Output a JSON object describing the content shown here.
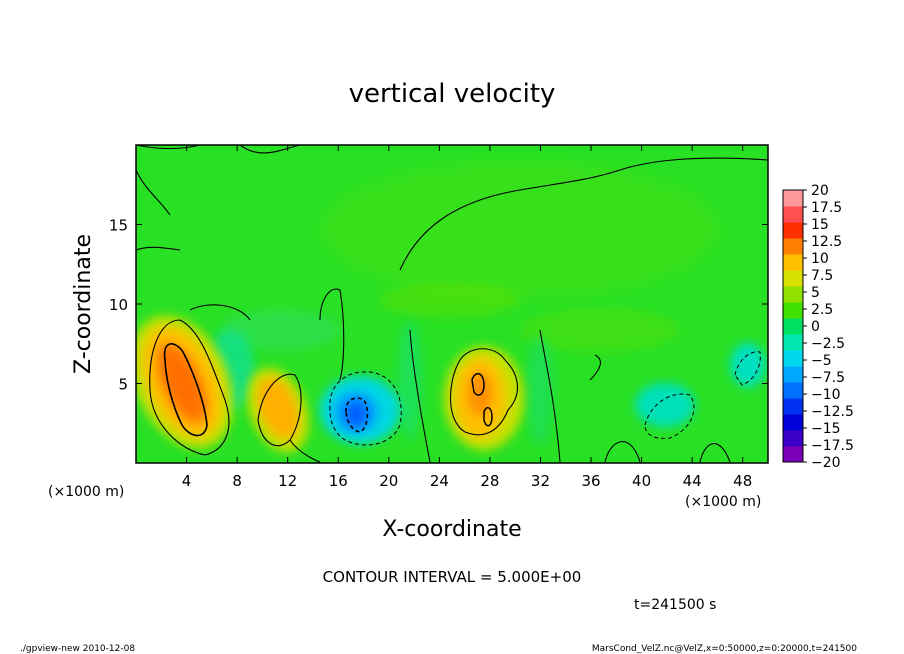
{
  "chart_data": {
    "type": "heatmap",
    "title": "vertical velocity",
    "xlabel": "X-coordinate",
    "ylabel": "Z-coordinate",
    "x_unit_label": "(×1000 m)",
    "y_unit_label": "(×1000 m)",
    "xlim": [
      0,
      50
    ],
    "ylim": [
      0,
      20
    ],
    "x_ticks": [
      4,
      8,
      12,
      16,
      20,
      24,
      28,
      32,
      36,
      40,
      44,
      48
    ],
    "y_ticks": [
      5,
      10,
      15
    ],
    "colorbar": {
      "levels": [
        -20,
        -17.5,
        -15,
        -12.5,
        -10,
        -7.5,
        -5,
        -2.5,
        0,
        2.5,
        5,
        7.5,
        10,
        12.5,
        15,
        17.5,
        20
      ],
      "labels": [
        "20",
        "17.5",
        "15",
        "12.5",
        "10",
        "7.5",
        "5",
        "2.5",
        "0",
        "−2.5",
        "−5",
        "−7.5",
        "−10",
        "−12.5",
        "−15",
        "−17.5",
        "−20"
      ],
      "colors": [
        "#7a00b8",
        "#3d00c8",
        "#0000d8",
        "#0030f0",
        "#0070ff",
        "#00a8ff",
        "#00d8f0",
        "#00e8b0",
        "#00e060",
        "#40e000",
        "#90e000",
        "#d8e000",
        "#ffc000",
        "#ff8000",
        "#ff3000",
        "#ff5050",
        "#ff9898"
      ]
    },
    "features": [
      {
        "x": 3.8,
        "z": 4.8,
        "w": 10.5,
        "kind": "updraft"
      },
      {
        "x": 11.2,
        "z": 3.2,
        "w": 7,
        "kind": "updraft"
      },
      {
        "x": 17.6,
        "z": 3.0,
        "w": -11,
        "kind": "downdraft"
      },
      {
        "x": 27.2,
        "z": 4.2,
        "w": 7,
        "kind": "updraft"
      },
      {
        "x": 41.5,
        "z": 3.0,
        "w": -4,
        "kind": "downdraft"
      },
      {
        "x": 48.5,
        "z": 5.8,
        "w": -3,
        "kind": "downdraft"
      }
    ],
    "contour_interval_label": "CONTOUR INTERVAL = 5.000E+00",
    "time_label": "t=241500 s"
  },
  "footer": {
    "left": "./gpview-new   2010-12-08",
    "right": "MarsCond_VelZ.nc@VelZ,x=0:50000,z=0:20000,t=241500"
  }
}
